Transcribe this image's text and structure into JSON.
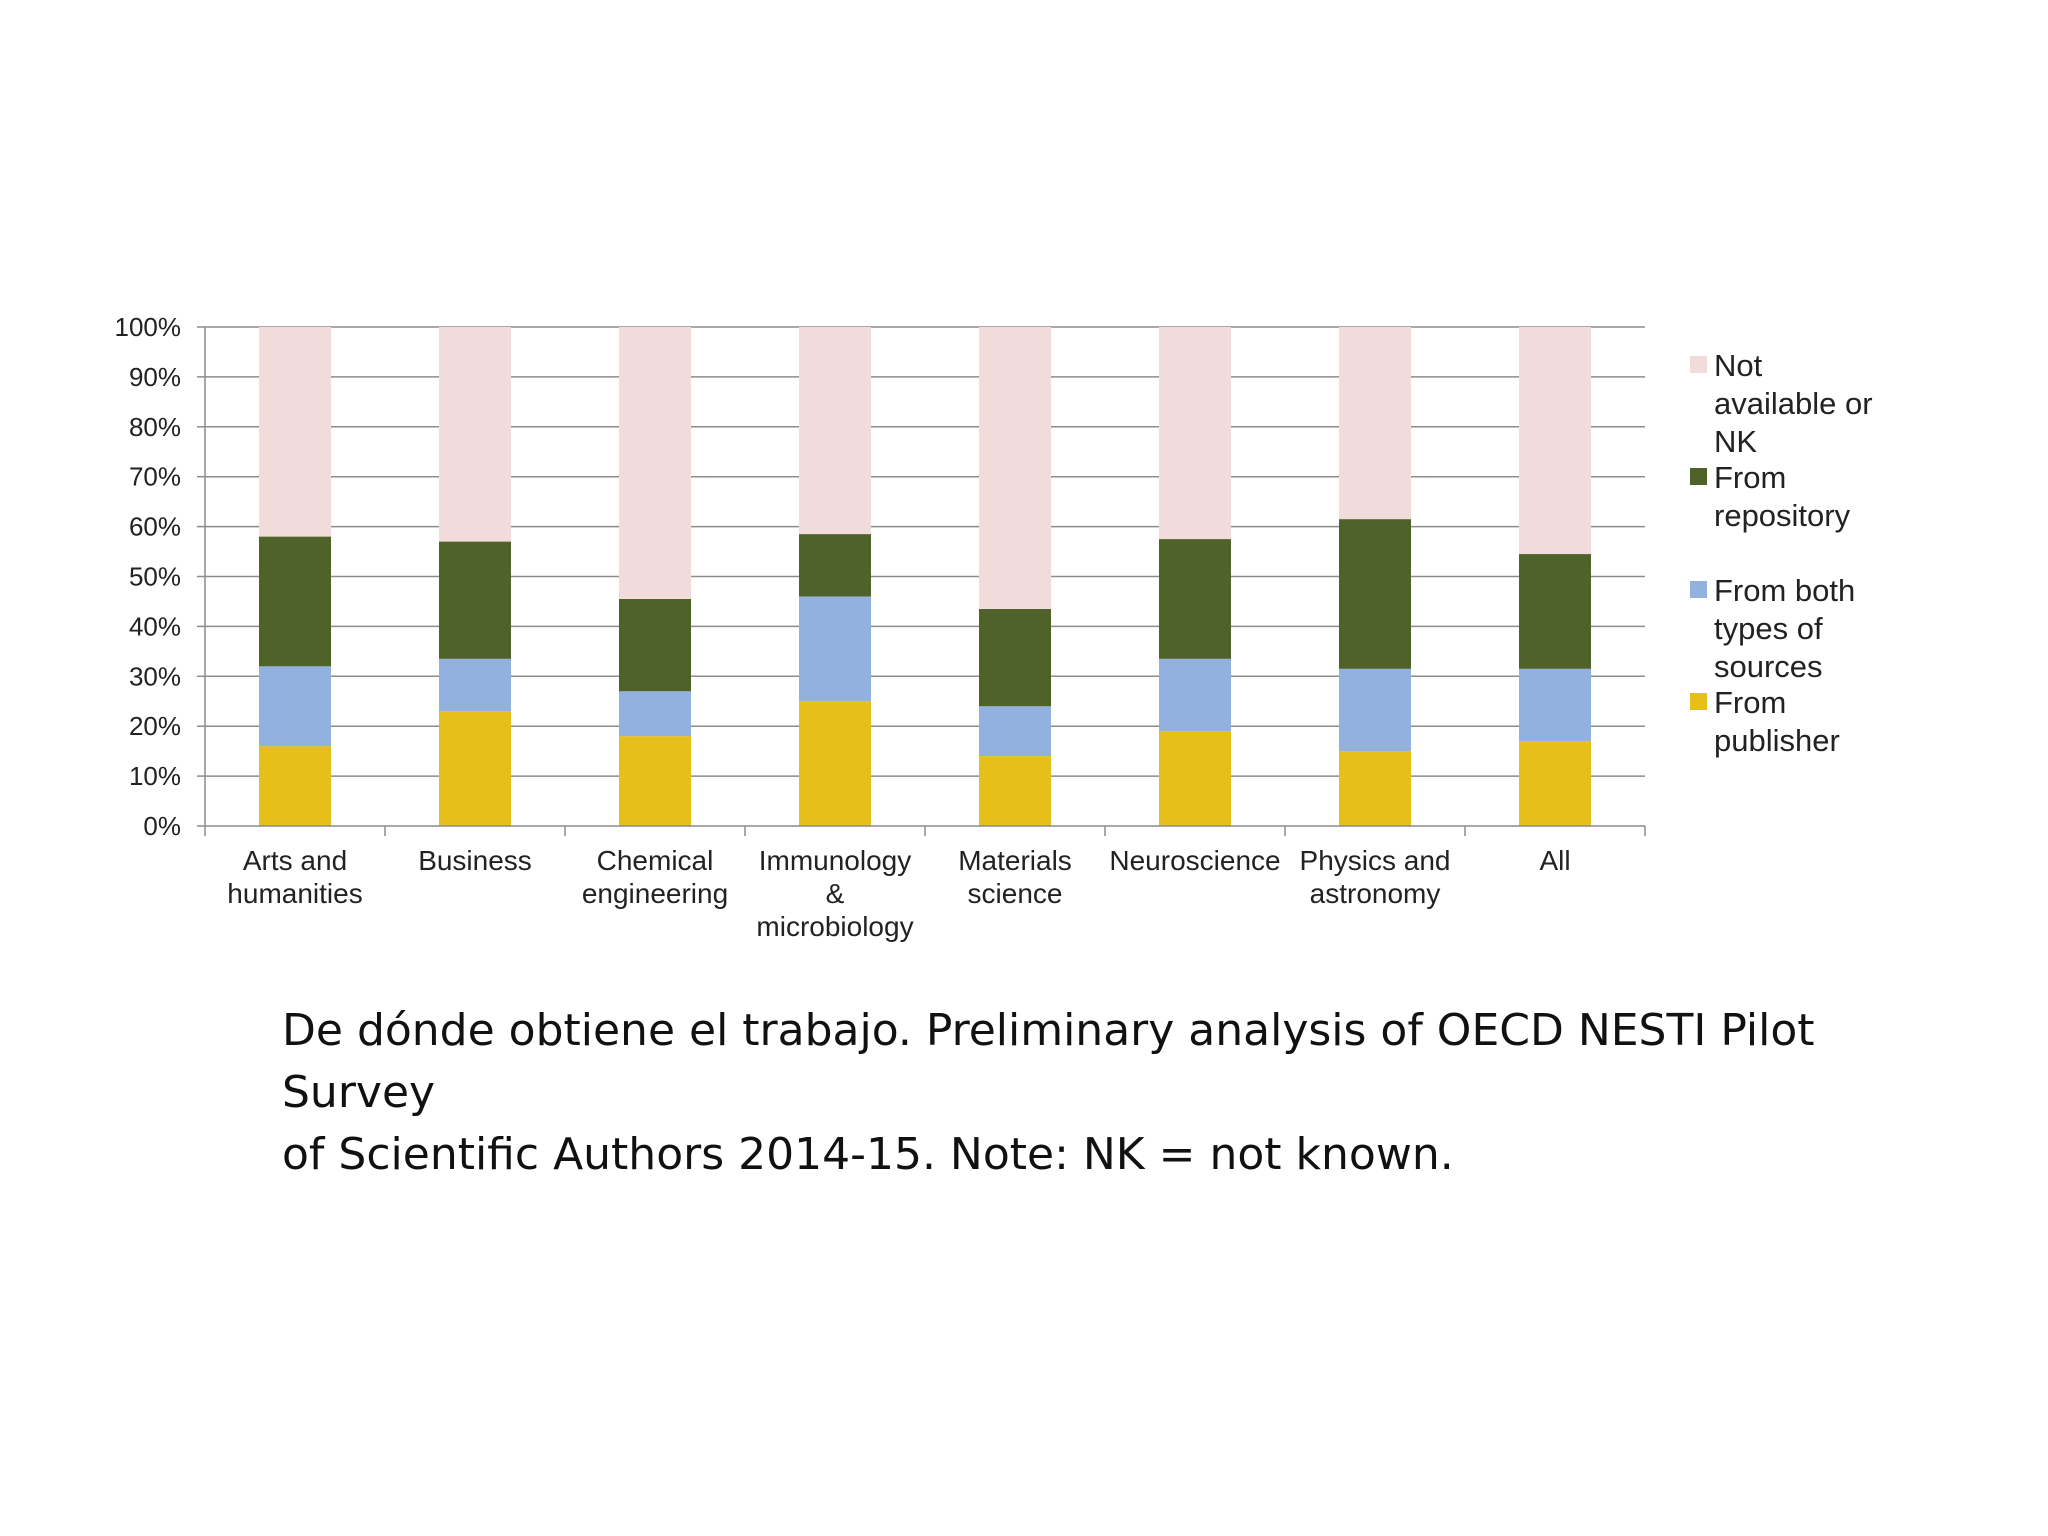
{
  "chart_data": {
    "type": "bar",
    "stacked": true,
    "percent": true,
    "categories": [
      [
        "Arts and",
        "humanities"
      ],
      [
        "Business"
      ],
      [
        "Chemical",
        "engineering"
      ],
      [
        "Immunology",
        "&",
        "microbiology"
      ],
      [
        "Materials",
        "science"
      ],
      [
        "Neuroscience"
      ],
      [
        "Physics and",
        "astronomy"
      ],
      [
        "All"
      ]
    ],
    "series": [
      {
        "name": [
          "From",
          "publisher"
        ],
        "color": "#e6bf1b",
        "values": [
          16,
          23,
          18,
          25,
          14,
          19,
          15,
          17
        ]
      },
      {
        "name": [
          "From both",
          "types of",
          "sources"
        ],
        "color": "#92b1de",
        "values": [
          16,
          10.5,
          9,
          21,
          10,
          14.5,
          16.5,
          14.5
        ]
      },
      {
        "name": [
          "From",
          "repository"
        ],
        "color": "#4f6229",
        "values": [
          26,
          23.5,
          18.5,
          12.5,
          19.5,
          24,
          30,
          23
        ]
      },
      {
        "name": [
          "Not",
          "available or",
          "NK"
        ],
        "color": "#f2dcdb",
        "values": [
          42,
          43,
          54.5,
          41.5,
          56.5,
          42.5,
          38.5,
          45.5
        ]
      }
    ],
    "yticks": [
      "0%",
      "10%",
      "20%",
      "30%",
      "40%",
      "50%",
      "60%",
      "70%",
      "80%",
      "90%",
      "100%"
    ],
    "ylim": [
      0,
      100
    ],
    "legend_position": "right",
    "title": "",
    "xlabel": "",
    "ylabel": ""
  },
  "caption": {
    "line1": "De dónde obtiene el trabajo. Preliminary analysis of OECD NESTI Pilot Survey",
    "line2": "of Scientific Authors 2014-15. Note: NK = not known."
  }
}
